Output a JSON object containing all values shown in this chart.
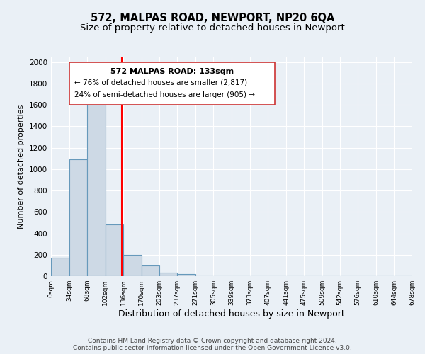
{
  "title": "572, MALPAS ROAD, NEWPORT, NP20 6QA",
  "subtitle": "Size of property relative to detached houses in Newport",
  "xlabel": "Distribution of detached houses by size in Newport",
  "ylabel": "Number of detached properties",
  "bin_edges": [
    0,
    34,
    68,
    102,
    136,
    170,
    203,
    237,
    271,
    305,
    339,
    373,
    407,
    441,
    475,
    509,
    542,
    576,
    610,
    644,
    678
  ],
  "bar_heights": [
    170,
    1090,
    1630,
    480,
    200,
    100,
    35,
    20,
    0,
    0,
    0,
    0,
    0,
    0,
    0,
    0,
    0,
    0,
    0,
    0
  ],
  "tick_labels": [
    "0sqm",
    "34sqm",
    "68sqm",
    "102sqm",
    "136sqm",
    "170sqm",
    "203sqm",
    "237sqm",
    "271sqm",
    "305sqm",
    "339sqm",
    "373sqm",
    "407sqm",
    "441sqm",
    "475sqm",
    "509sqm",
    "542sqm",
    "576sqm",
    "610sqm",
    "644sqm",
    "678sqm"
  ],
  "bar_color": "#cdd9e5",
  "bar_edge_color": "#6699bb",
  "red_line_x": 133,
  "xlim": [
    0,
    678
  ],
  "ylim": [
    0,
    2050
  ],
  "yticks": [
    0,
    200,
    400,
    600,
    800,
    1000,
    1200,
    1400,
    1600,
    1800,
    2000
  ],
  "annotation_title": "572 MALPAS ROAD: 133sqm",
  "annotation_line1": "← 76% of detached houses are smaller (2,817)",
  "annotation_line2": "24% of semi-detached houses are larger (905) →",
  "footer_line1": "Contains HM Land Registry data © Crown copyright and database right 2024.",
  "footer_line2": "Contains public sector information licensed under the Open Government Licence v3.0.",
  "background_color": "#eaf0f6",
  "grid_color": "#ffffff",
  "title_fontsize": 10.5,
  "subtitle_fontsize": 9.5,
  "ylabel_fontsize": 8,
  "xlabel_fontsize": 9
}
